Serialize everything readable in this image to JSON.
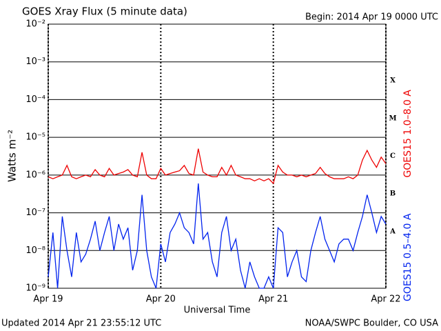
{
  "chart_data": {
    "type": "line",
    "title": "GOES Xray Flux (5 minute data)",
    "subtitle": "Begin:  2014 Apr 19 0000 UTC",
    "x_label": "Universal Time",
    "y_label": "Watts m⁻²",
    "footer_left": "Updated 2014 Apr 21 23:55:12 UTC",
    "footer_right": "NOAA/SWPC Boulder, CO USA",
    "annotations": [
      "X",
      "M",
      "C",
      "B",
      "A"
    ],
    "log_y": true,
    "grid": true,
    "x": [
      0,
      1,
      2,
      3,
      4,
      5,
      6,
      7,
      8,
      9,
      10,
      11,
      12,
      13,
      14,
      15,
      16,
      17,
      18,
      19,
      20,
      21,
      22,
      23,
      24,
      25,
      26,
      27,
      28,
      29,
      30,
      31,
      32,
      33,
      34,
      35,
      36,
      37,
      38,
      39,
      40,
      41,
      42,
      43,
      44,
      45,
      46,
      47,
      48,
      49,
      50,
      51,
      52,
      53,
      54,
      55,
      56,
      57,
      58,
      59,
      60,
      61,
      62,
      63,
      64,
      65,
      66,
      67,
      68,
      69,
      70,
      71,
      72
    ],
    "xlim": [
      0,
      72
    ],
    "xticks": [
      {
        "value": 0,
        "label": "Apr 19"
      },
      {
        "value": 24,
        "label": "Apr 20"
      },
      {
        "value": 48,
        "label": "Apr 21"
      },
      {
        "value": 72,
        "label": "Apr 22"
      }
    ],
    "ylim": [
      1e-09,
      0.01
    ],
    "yticks": [
      {
        "value": 1e-09,
        "label": "10⁻⁹"
      },
      {
        "value": 1e-08,
        "label": "10⁻⁸"
      },
      {
        "value": 1e-07,
        "label": "10⁻⁷"
      },
      {
        "value": 1e-06,
        "label": "10⁻⁶"
      },
      {
        "value": 1e-05,
        "label": "10⁻⁵"
      },
      {
        "value": 0.0001,
        "label": "10⁻⁴"
      },
      {
        "value": 0.001,
        "label": "10⁻³"
      },
      {
        "value": 0.01,
        "label": "10⁻²"
      }
    ],
    "series": [
      {
        "name": "GOES15 1.0–8.0 A",
        "color": "#ee0000",
        "values": [
          9e-07,
          8e-07,
          9e-07,
          1e-06,
          1.8e-06,
          9e-07,
          8e-07,
          9e-07,
          1e-06,
          9e-07,
          1.4e-06,
          1e-06,
          9e-07,
          1.5e-06,
          1e-06,
          1.1e-06,
          1.2e-06,
          1.4e-06,
          1e-06,
          9e-07,
          4e-06,
          1e-06,
          8e-07,
          8e-07,
          1.5e-06,
          1e-06,
          1.1e-06,
          1.2e-06,
          1.3e-06,
          1.8e-06,
          1.1e-06,
          1e-06,
          5e-06,
          1.2e-06,
          1e-06,
          9e-07,
          9e-07,
          1.6e-06,
          1e-06,
          1.8e-06,
          1e-06,
          9e-07,
          8e-07,
          8e-07,
          7e-07,
          8e-07,
          7e-07,
          8e-07,
          6e-07,
          1.8e-06,
          1.2e-06,
          1e-06,
          1e-06,
          9e-07,
          1e-06,
          9e-07,
          1e-06,
          1.1e-06,
          1.6e-06,
          1.1e-06,
          9e-07,
          8e-07,
          8e-07,
          8e-07,
          9e-07,
          8e-07,
          1e-06,
          2.5e-06,
          4.5e-06,
          2.5e-06,
          1.6e-06,
          3e-06,
          2e-06
        ]
      },
      {
        "name": "GOES15 0.5–4.0 A",
        "color": "#0022ee",
        "values": [
          2e-09,
          3e-08,
          1e-09,
          8e-08,
          1e-08,
          2e-09,
          3e-08,
          5e-09,
          8e-09,
          2e-08,
          6e-08,
          1e-08,
          3e-08,
          8e-08,
          1e-08,
          5e-08,
          2e-08,
          4e-08,
          3e-09,
          1e-08,
          3e-07,
          1e-08,
          2e-09,
          1e-09,
          1.5e-08,
          5e-09,
          3e-08,
          5e-08,
          1e-07,
          4e-08,
          3e-08,
          1.5e-08,
          6e-07,
          2e-08,
          3e-08,
          5e-09,
          2e-09,
          3e-08,
          8e-08,
          1e-08,
          2e-08,
          3e-09,
          1e-09,
          5e-09,
          2e-09,
          1e-09,
          1e-09,
          2e-09,
          1e-09,
          4e-08,
          3e-08,
          2e-09,
          5e-09,
          1e-08,
          2e-09,
          1.5e-09,
          1e-08,
          3e-08,
          8e-08,
          2e-08,
          1e-08,
          5e-09,
          1.5e-08,
          2e-08,
          2e-08,
          1e-08,
          3e-08,
          8e-08,
          3e-07,
          1e-07,
          3e-08,
          8e-08,
          5e-08
        ]
      }
    ]
  }
}
